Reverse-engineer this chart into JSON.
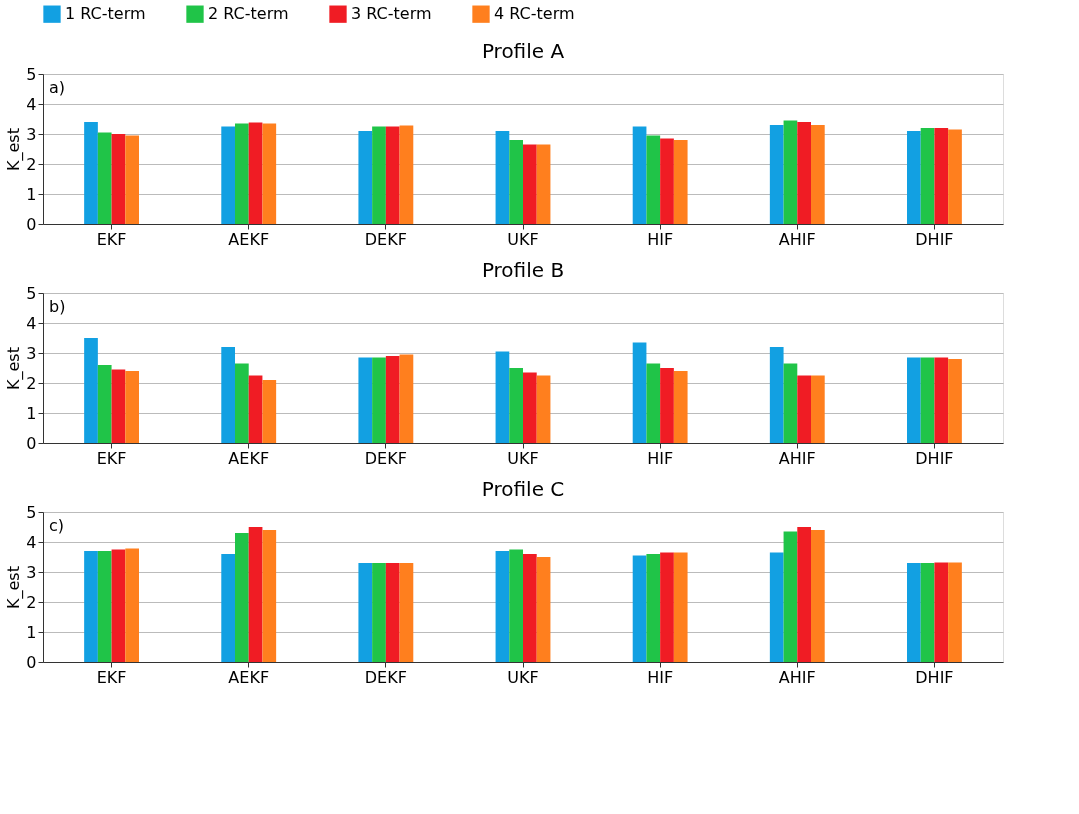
{
  "chart_data": [
    {
      "type": "bar",
      "title": "Profile A",
      "ylabel": "K_est",
      "annotations": [
        "a)"
      ],
      "categories": [
        "EKF",
        "AEKF",
        "DEKF",
        "UKF",
        "HIF",
        "AHIF",
        "DHIF"
      ],
      "ylim": [
        0,
        5
      ],
      "yticks": [
        0,
        1,
        2,
        3,
        4,
        5
      ],
      "grid": "y",
      "legend": "top",
      "series": [
        {
          "name": "1 RC-term",
          "color": "#12a0e2",
          "values": [
            3.4,
            3.25,
            3.1,
            3.1,
            3.25,
            3.3,
            3.1
          ]
        },
        {
          "name": "2 RC-term",
          "color": "#20c448",
          "values": [
            3.05,
            3.35,
            3.25,
            2.8,
            2.95,
            3.45,
            3.2
          ]
        },
        {
          "name": "3 RC-term",
          "color": "#f01c24",
          "values": [
            3.0,
            3.38,
            3.25,
            2.65,
            2.85,
            3.4,
            3.2
          ]
        },
        {
          "name": "4 RC-term",
          "color": "#ff7f1e",
          "values": [
            2.95,
            3.35,
            3.28,
            2.65,
            2.8,
            3.3,
            3.15
          ]
        }
      ]
    },
    {
      "type": "bar",
      "title": "Profile B",
      "ylabel": "K_est",
      "annotations": [
        "b)"
      ],
      "categories": [
        "EKF",
        "AEKF",
        "DEKF",
        "UKF",
        "HIF",
        "AHIF",
        "DHIF"
      ],
      "ylim": [
        0,
        5
      ],
      "yticks": [
        0,
        1,
        2,
        3,
        4,
        5
      ],
      "grid": "y",
      "series": [
        {
          "name": "1 RC-term",
          "color": "#12a0e2",
          "values": [
            3.5,
            3.2,
            2.85,
            3.05,
            3.35,
            3.2,
            2.85
          ]
        },
        {
          "name": "2 RC-term",
          "color": "#20c448",
          "values": [
            2.6,
            2.65,
            2.85,
            2.5,
            2.65,
            2.65,
            2.85
          ]
        },
        {
          "name": "3 RC-term",
          "color": "#f01c24",
          "values": [
            2.45,
            2.25,
            2.9,
            2.35,
            2.5,
            2.25,
            2.85
          ]
        },
        {
          "name": "4 RC-term",
          "color": "#ff7f1e",
          "values": [
            2.4,
            2.1,
            2.95,
            2.25,
            2.4,
            2.25,
            2.8
          ]
        }
      ]
    },
    {
      "type": "bar",
      "title": "Profile C",
      "ylabel": "K_est",
      "annotations": [
        "c)"
      ],
      "categories": [
        "EKF",
        "AEKF",
        "DEKF",
        "UKF",
        "HIF",
        "AHIF",
        "DHIF"
      ],
      "ylim": [
        0,
        5
      ],
      "yticks": [
        0,
        1,
        2,
        3,
        4,
        5
      ],
      "grid": "y",
      "series": [
        {
          "name": "1 RC-term",
          "color": "#12a0e2",
          "values": [
            3.7,
            3.6,
            3.3,
            3.7,
            3.55,
            3.65,
            3.3
          ]
        },
        {
          "name": "2 RC-term",
          "color": "#20c448",
          "values": [
            3.7,
            4.3,
            3.3,
            3.75,
            3.6,
            4.35,
            3.3
          ]
        },
        {
          "name": "3 RC-term",
          "color": "#f01c24",
          "values": [
            3.75,
            4.5,
            3.3,
            3.6,
            3.65,
            4.5,
            3.32
          ]
        },
        {
          "name": "4 RC-term",
          "color": "#ff7f1e",
          "values": [
            3.78,
            4.4,
            3.3,
            3.5,
            3.65,
            4.4,
            3.32
          ]
        }
      ]
    }
  ]
}
